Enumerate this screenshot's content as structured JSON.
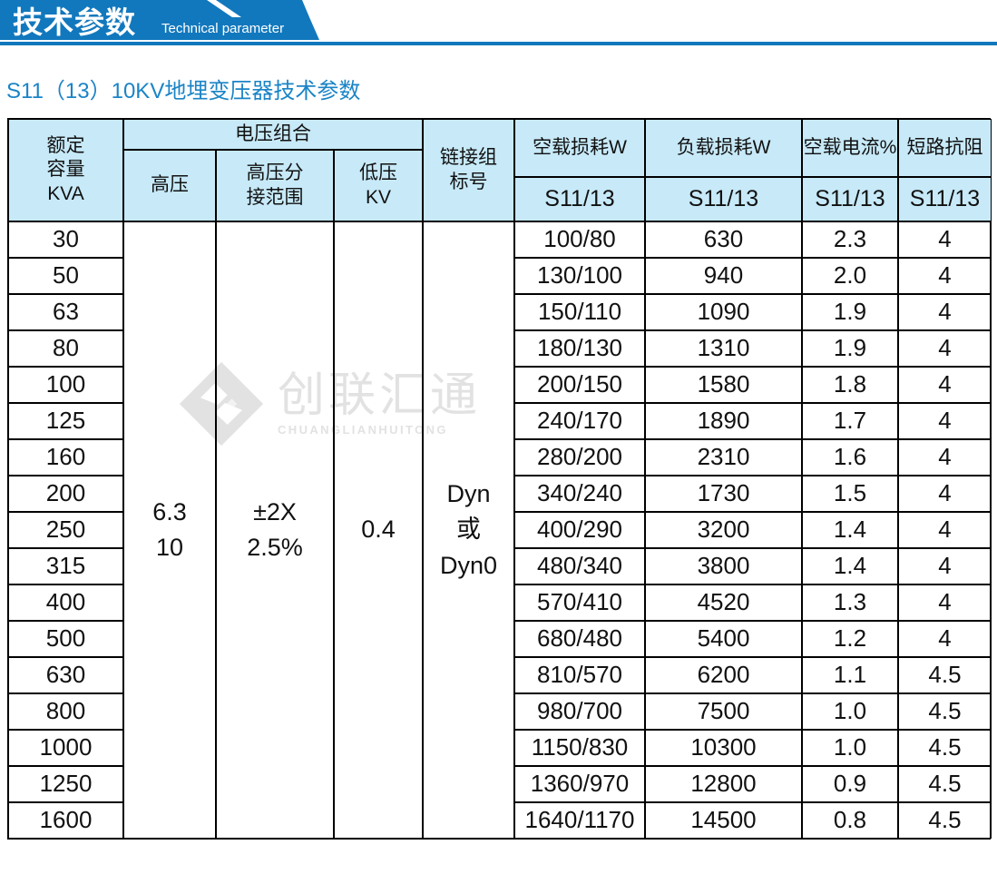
{
  "colors": {
    "accent": "#1278bd",
    "header_bg": "#c7e9f8",
    "heading_text": "#1b84c6",
    "watermark": "#e2e2e2",
    "border": "#000000"
  },
  "banner": {
    "title": "技术参数",
    "subtitle": "Technical parameter"
  },
  "page": {
    "heading": "S11（13）10KV地埋变压器技术参数"
  },
  "watermark": {
    "cn": "创联汇通",
    "en": "CHUANGLIANHUITONG",
    "diamond_icon": "diamond-logo-icon"
  },
  "table": {
    "headers": {
      "capacity": "额定\n容量\nKVA",
      "voltage_group": "电压组合",
      "hv": "高压",
      "tap": "高压分\n接范围",
      "lv": "低压\nKV",
      "vector": "链接组\n标号",
      "no_load_loss": "空载损耗W",
      "load_loss": "负载损耗W",
      "no_load_current": "空载电流%",
      "impedance": "短路抗阻",
      "sub_no_load_loss": "S11/13",
      "sub_load_loss": "S11/13",
      "sub_no_load_current": "S11/13",
      "sub_impedance": "S11/13"
    },
    "merged": {
      "hv": "6.3\n10",
      "tap": "±2X\n2.5%",
      "lv": "0.4",
      "vector": "Dyn\n或\nDyn0"
    },
    "rows": [
      {
        "capacity": "30",
        "no_load_loss": "100/80",
        "load_loss": "630",
        "no_load_current": "2.3",
        "impedance": "4"
      },
      {
        "capacity": "50",
        "no_load_loss": "130/100",
        "load_loss": "940",
        "no_load_current": "2.0",
        "impedance": "4"
      },
      {
        "capacity": "63",
        "no_load_loss": "150/110",
        "load_loss": "1090",
        "no_load_current": "1.9",
        "impedance": "4"
      },
      {
        "capacity": "80",
        "no_load_loss": "180/130",
        "load_loss": "1310",
        "no_load_current": "1.9",
        "impedance": "4"
      },
      {
        "capacity": "100",
        "no_load_loss": "200/150",
        "load_loss": "1580",
        "no_load_current": "1.8",
        "impedance": "4"
      },
      {
        "capacity": "125",
        "no_load_loss": "240/170",
        "load_loss": "1890",
        "no_load_current": "1.7",
        "impedance": "4"
      },
      {
        "capacity": "160",
        "no_load_loss": "280/200",
        "load_loss": "2310",
        "no_load_current": "1.6",
        "impedance": "4"
      },
      {
        "capacity": "200",
        "no_load_loss": "340/240",
        "load_loss": "1730",
        "no_load_current": "1.5",
        "impedance": "4"
      },
      {
        "capacity": "250",
        "no_load_loss": "400/290",
        "load_loss": "3200",
        "no_load_current": "1.4",
        "impedance": "4"
      },
      {
        "capacity": "315",
        "no_load_loss": "480/340",
        "load_loss": "3800",
        "no_load_current": "1.4",
        "impedance": "4"
      },
      {
        "capacity": "400",
        "no_load_loss": "570/410",
        "load_loss": "4520",
        "no_load_current": "1.3",
        "impedance": "4"
      },
      {
        "capacity": "500",
        "no_load_loss": "680/480",
        "load_loss": "5400",
        "no_load_current": "1.2",
        "impedance": "4"
      },
      {
        "capacity": "630",
        "no_load_loss": "810/570",
        "load_loss": "6200",
        "no_load_current": "1.1",
        "impedance": "4.5"
      },
      {
        "capacity": "800",
        "no_load_loss": "980/700",
        "load_loss": "7500",
        "no_load_current": "1.0",
        "impedance": "4.5"
      },
      {
        "capacity": "1000",
        "no_load_loss": "1150/830",
        "load_loss": "10300",
        "no_load_current": "1.0",
        "impedance": "4.5"
      },
      {
        "capacity": "1250",
        "no_load_loss": "1360/970",
        "load_loss": "12800",
        "no_load_current": "0.9",
        "impedance": "4.5"
      },
      {
        "capacity": "1600",
        "no_load_loss": "1640/1170",
        "load_loss": "14500",
        "no_load_current": "0.8",
        "impedance": "4.5"
      }
    ]
  }
}
